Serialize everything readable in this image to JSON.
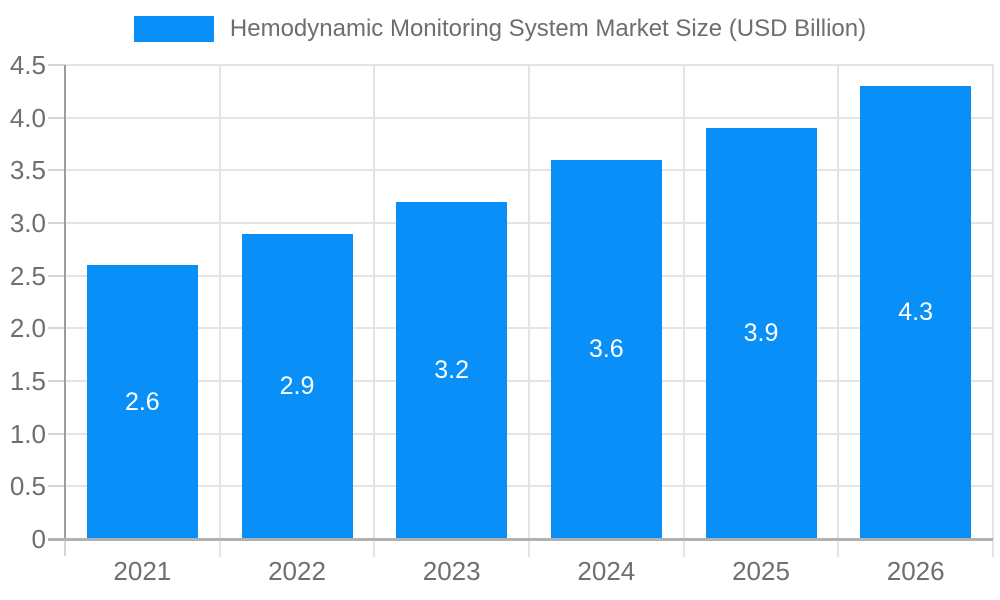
{
  "legend": {
    "label": "Hemodynamic Monitoring System Market Size (USD Billion)"
  },
  "chart_data": {
    "type": "bar",
    "title": "Hemodynamic Monitoring System Market Size (USD Billion)",
    "categories": [
      "2021",
      "2022",
      "2023",
      "2024",
      "2025",
      "2026"
    ],
    "values": [
      2.6,
      2.9,
      3.2,
      3.6,
      3.9,
      4.3
    ],
    "bar_labels": [
      "2.6",
      "2.9",
      "3.2",
      "3.6",
      "3.9",
      "4.3"
    ],
    "xlabel": "",
    "ylabel": "",
    "ylim": [
      0,
      4.5
    ],
    "ytick_step": 0.5,
    "ytick_labels": [
      "0",
      "0.5",
      "1.0",
      "1.5",
      "2.0",
      "2.5",
      "3.0",
      "3.5",
      "4.0",
      "4.5"
    ],
    "grid": true,
    "legend_position": "top-center",
    "colors": {
      "bar": "#0890f8",
      "bar_value_text": "#ffffff",
      "tick_text": "#6f6f6f",
      "legend_text": "#6e6e6e",
      "gridline": "#e4e4e4",
      "baseline": "#b1b1b1",
      "axis_line": "#9c9c9c",
      "tick_mark": "#d5d5d5",
      "background": "#ffffff"
    }
  }
}
